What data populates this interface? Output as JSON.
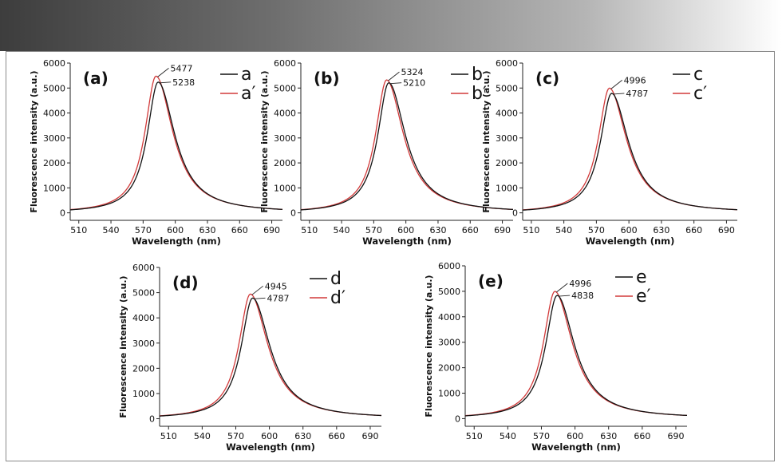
{
  "chart_data": [
    {
      "id": "a",
      "type": "line",
      "panel_label": "(a)",
      "xlabel": "Wavelength (nm)",
      "ylabel": "Fluorescence intensity (a.u.)",
      "xlim": [
        502,
        700
      ],
      "ylim": [
        -300,
        6000
      ],
      "xticks": [
        510,
        540,
        570,
        600,
        630,
        660,
        690
      ],
      "yticks": [
        0,
        1000,
        2000,
        3000,
        4000,
        5000,
        6000
      ],
      "series": [
        {
          "name": "a",
          "color": "#111111",
          "peak_x": 584,
          "peak": 5238
        },
        {
          "name": "a′",
          "color": "#d23a3a",
          "peak_x": 582,
          "peak": 5477
        }
      ],
      "annotations": [
        "5477",
        "5238"
      ]
    },
    {
      "id": "b",
      "type": "line",
      "panel_label": "(b)",
      "xlabel": "Wavelength (nm)",
      "ylabel": "Fluorescence intensity (a.u.)",
      "xlim": [
        502,
        700
      ],
      "ylim": [
        -300,
        6000
      ],
      "xticks": [
        510,
        540,
        570,
        600,
        630,
        660,
        690
      ],
      "yticks": [
        0,
        1000,
        2000,
        3000,
        4000,
        5000,
        6000
      ],
      "series": [
        {
          "name": "b",
          "color": "#111111",
          "peak_x": 584,
          "peak": 5210
        },
        {
          "name": "b′",
          "color": "#d23a3a",
          "peak_x": 582,
          "peak": 5324
        }
      ],
      "annotations": [
        "5324",
        "5210"
      ]
    },
    {
      "id": "c",
      "type": "line",
      "panel_label": "(c)",
      "xlabel": "Wavelength (nm)",
      "ylabel": "Fluorescence intensity (a.u.)",
      "xlim": [
        502,
        700
      ],
      "ylim": [
        -300,
        6000
      ],
      "xticks": [
        510,
        540,
        570,
        600,
        630,
        660,
        690
      ],
      "yticks": [
        0,
        1000,
        2000,
        3000,
        4000,
        5000,
        6000
      ],
      "series": [
        {
          "name": "c",
          "color": "#111111",
          "peak_x": 584,
          "peak": 4787
        },
        {
          "name": "c′",
          "color": "#d23a3a",
          "peak_x": 582,
          "peak": 4996
        }
      ],
      "annotations": [
        "4996",
        "4787"
      ]
    },
    {
      "id": "d",
      "type": "line",
      "panel_label": "(d)",
      "xlabel": "Wavelength (nm)",
      "ylabel": "Fluorescence intensity (a.u.)",
      "xlim": [
        502,
        700
      ],
      "ylim": [
        -300,
        6000
      ],
      "xticks": [
        510,
        540,
        570,
        600,
        630,
        660,
        690
      ],
      "yticks": [
        0,
        1000,
        2000,
        3000,
        4000,
        5000,
        6000
      ],
      "series": [
        {
          "name": "d",
          "color": "#111111",
          "peak_x": 585,
          "peak": 4787
        },
        {
          "name": "d′",
          "color": "#d23a3a",
          "peak_x": 583,
          "peak": 4945
        }
      ],
      "annotations": [
        "4945",
        "4787"
      ]
    },
    {
      "id": "e",
      "type": "line",
      "panel_label": "(e)",
      "xlabel": "Wavelength (nm)",
      "ylabel": "Fluorescence intensity (a.u.)",
      "xlim": [
        502,
        700
      ],
      "ylim": [
        -300,
        6000
      ],
      "xticks": [
        510,
        540,
        570,
        600,
        630,
        660,
        690
      ],
      "yticks": [
        0,
        1000,
        2000,
        3000,
        4000,
        5000,
        6000
      ],
      "series": [
        {
          "name": "e",
          "color": "#111111",
          "peak_x": 584,
          "peak": 4838
        },
        {
          "name": "e′",
          "color": "#d23a3a",
          "peak_x": 582,
          "peak": 4996
        }
      ],
      "annotations": [
        "4996",
        "4838"
      ]
    }
  ]
}
